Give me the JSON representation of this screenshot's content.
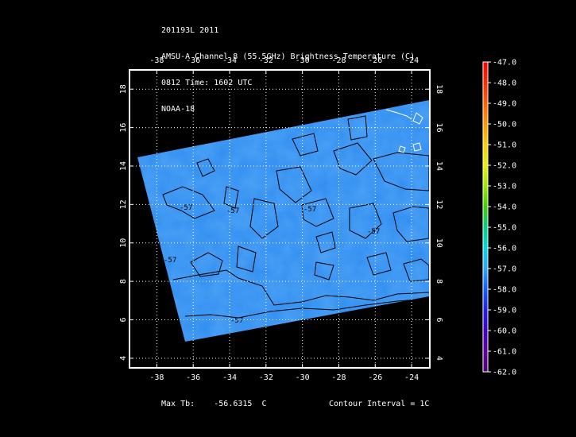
{
  "header": {
    "lines": [
      "201193L 2011",
      "AMSU-A Channel 8 (55.5GHz) Brightness Temperature (C)",
      "0812 Time: 1602 UTC",
      "NOAA-18"
    ]
  },
  "map": {
    "lon_ticks": [
      "-38",
      "-36",
      "-34",
      "-32",
      "-30",
      "-28",
      "-26",
      "-24"
    ],
    "lat_ticks": [
      "4",
      "6",
      "8",
      "10",
      "12",
      "14",
      "16",
      "18"
    ],
    "lon_range": [
      -39.5,
      -23.0
    ],
    "lat_range": [
      3.5,
      19.0
    ],
    "swath_color": "#2f8cf0",
    "contour_labels": [
      "-57",
      "-57",
      "-57",
      "-57",
      "-57",
      "-57"
    ]
  },
  "colorbar": {
    "labels": [
      "-47.0",
      "-48.0",
      "-49.0",
      "-50.0",
      "-51.0",
      "-52.0",
      "-53.0",
      "-54.0",
      "-55.0",
      "-56.0",
      "-57.0",
      "-58.0",
      "-59.0",
      "-60.0",
      "-61.0",
      "-62.0"
    ],
    "colors": [
      "#ff0000",
      "#ff2a00",
      "#ff6000",
      "#ff9800",
      "#ffcc00",
      "#e8f000",
      "#a0e800",
      "#40d000",
      "#00d080",
      "#00d8e0",
      "#2aa8f8",
      "#1060ff",
      "#2020e8",
      "#4000c8",
      "#6000a0",
      "#500078"
    ]
  },
  "footer": {
    "max_label": "Max Tb:",
    "max_value": "-56.6315",
    "max_unit": "C",
    "contour_interval": "Contour Interval = 1C"
  }
}
